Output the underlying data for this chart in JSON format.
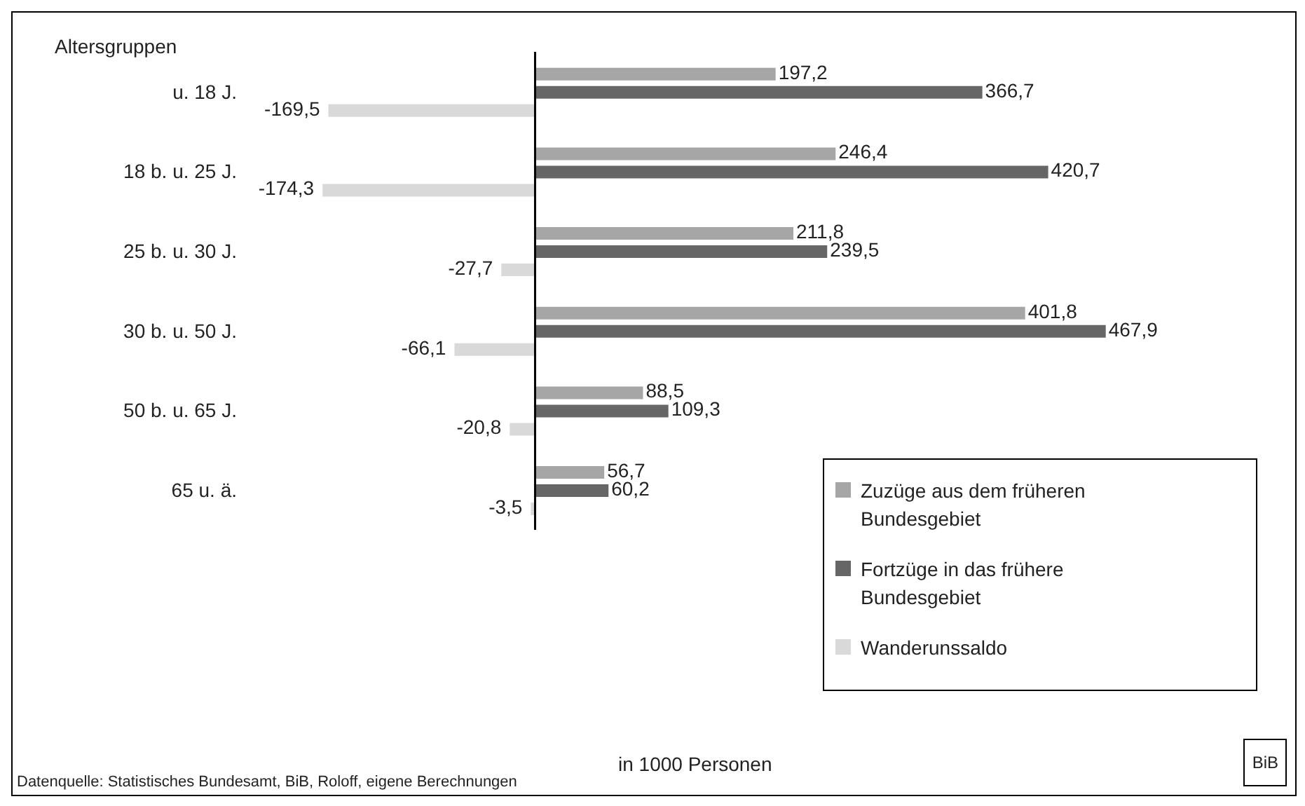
{
  "chart_data": {
    "type": "bar",
    "orientation": "horizontal",
    "ylabel": "Altersgruppen",
    "categories": [
      "u. 18 J.",
      "18 b. u. 25 J.",
      "25 b. u. 30 J.",
      "30 b. u. 50 J.",
      "50 b. u. 65 J.",
      "65 u. ä."
    ],
    "series": [
      {
        "name": "Zuzüge aus dem früheren Bundesgebiet",
        "color": "#a6a6a6",
        "values": [
          197.2,
          246.4,
          211.8,
          401.8,
          88.5,
          56.7
        ],
        "value_labels": [
          "197,2",
          "246,4",
          "211,8",
          "401,8",
          "88,5",
          "56,7"
        ]
      },
      {
        "name": "Fortzüge in das frühere Bundesgebiet",
        "color": "#666666",
        "values": [
          366.7,
          420.7,
          239.5,
          467.9,
          109.3,
          60.2
        ],
        "value_labels": [
          "366,7",
          "420,7",
          "239,5",
          "467,9",
          "109,3",
          "60,2"
        ]
      },
      {
        "name": "Wanderunssaldo",
        "color": "#d9d9d9",
        "values": [
          -169.5,
          -174.3,
          -27.7,
          -66.1,
          -20.8,
          -3.5
        ],
        "value_labels": [
          "-169,5",
          "-174,3",
          "-27,7",
          "-66,1",
          "-20,8",
          "-3,5"
        ]
      }
    ],
    "legend": "bottom right",
    "annotations": [
      "in 1000 Personen",
      "Datenquelle: Statistisches Bundesamt, BiB, Roloff, eigene Berechnungen",
      "BiB"
    ]
  }
}
